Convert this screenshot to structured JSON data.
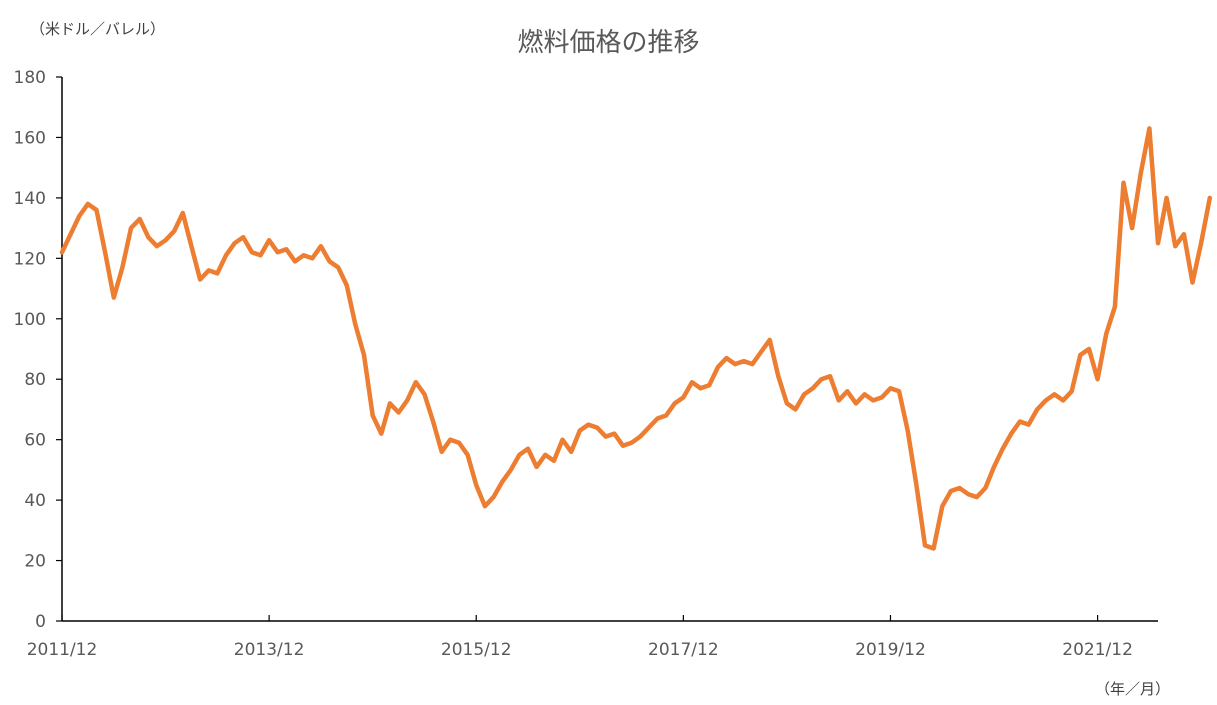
{
  "chart_data": {
    "type": "line",
    "title": "燃料価格の推移",
    "ylabel": "（米ドル／バレル）",
    "xlabel": "（年／月）",
    "ylim": [
      0,
      180
    ],
    "y_ticks": [
      "0",
      "20",
      "40",
      "60",
      "80",
      "100",
      "120",
      "140",
      "160",
      "180"
    ],
    "x_ticks": [
      "2011/12",
      "2013/12",
      "2015/12",
      "2017/12",
      "2019/12",
      "2021/12"
    ],
    "xlim": [
      "2011/12",
      "2022/07"
    ],
    "grid": false,
    "line_color": "#ED7D31",
    "series": [
      {
        "points": [
          [
            "2011/12",
            122
          ],
          [
            "2012/01",
            128
          ],
          [
            "2012/02",
            134
          ],
          [
            "2012/03",
            138
          ],
          [
            "2012/04",
            136
          ],
          [
            "2012/05",
            122
          ],
          [
            "2012/06",
            107
          ],
          [
            "2012/07",
            117
          ],
          [
            "2012/08",
            130
          ],
          [
            "2012/09",
            133
          ],
          [
            "2012/10",
            127
          ],
          [
            "2012/11",
            124
          ],
          [
            "2012/12",
            126
          ],
          [
            "2013/01",
            129
          ],
          [
            "2013/02",
            135
          ],
          [
            "2013/03",
            124
          ],
          [
            "2013/04",
            113
          ],
          [
            "2013/05",
            116
          ],
          [
            "2013/06",
            115
          ],
          [
            "2013/07",
            121
          ],
          [
            "2013/08",
            125
          ],
          [
            "2013/09",
            127
          ],
          [
            "2013/10",
            122
          ],
          [
            "2013/11",
            121
          ],
          [
            "2013/12",
            126
          ],
          [
            "2014/01",
            122
          ],
          [
            "2014/02",
            123
          ],
          [
            "2014/03",
            119
          ],
          [
            "2014/04",
            121
          ],
          [
            "2014/05",
            120
          ],
          [
            "2014/06",
            124
          ],
          [
            "2014/07",
            119
          ],
          [
            "2014/08",
            117
          ],
          [
            "2014/09",
            111
          ],
          [
            "2014/10",
            98
          ],
          [
            "2014/11",
            88
          ],
          [
            "2014/12",
            68
          ],
          [
            "2015/01",
            62
          ],
          [
            "2015/02",
            72
          ],
          [
            "2015/03",
            69
          ],
          [
            "2015/04",
            73
          ],
          [
            "2015/05",
            79
          ],
          [
            "2015/06",
            75
          ],
          [
            "2015/07",
            66
          ],
          [
            "2015/08",
            56
          ],
          [
            "2015/09",
            60
          ],
          [
            "2015/10",
            59
          ],
          [
            "2015/11",
            55
          ],
          [
            "2015/12",
            45
          ],
          [
            "2016/01",
            38
          ],
          [
            "2016/02",
            41
          ],
          [
            "2016/03",
            46
          ],
          [
            "2016/04",
            50
          ],
          [
            "2016/05",
            55
          ],
          [
            "2016/06",
            57
          ],
          [
            "2016/07",
            51
          ],
          [
            "2016/08",
            55
          ],
          [
            "2016/09",
            53
          ],
          [
            "2016/10",
            60
          ],
          [
            "2016/11",
            56
          ],
          [
            "2016/12",
            63
          ],
          [
            "2017/01",
            65
          ],
          [
            "2017/02",
            64
          ],
          [
            "2017/03",
            61
          ],
          [
            "2017/04",
            62
          ],
          [
            "2017/05",
            58
          ],
          [
            "2017/06",
            59
          ],
          [
            "2017/07",
            61
          ],
          [
            "2017/08",
            64
          ],
          [
            "2017/09",
            67
          ],
          [
            "2017/10",
            68
          ],
          [
            "2017/11",
            72
          ],
          [
            "2017/12",
            74
          ],
          [
            "2018/01",
            79
          ],
          [
            "2018/02",
            77
          ],
          [
            "2018/03",
            78
          ],
          [
            "2018/04",
            84
          ],
          [
            "2018/05",
            87
          ],
          [
            "2018/06",
            85
          ],
          [
            "2018/07",
            86
          ],
          [
            "2018/08",
            85
          ],
          [
            "2018/09",
            89
          ],
          [
            "2018/10",
            93
          ],
          [
            "2018/11",
            81
          ],
          [
            "2018/12",
            72
          ],
          [
            "2019/01",
            70
          ],
          [
            "2019/02",
            75
          ],
          [
            "2019/03",
            77
          ],
          [
            "2019/04",
            80
          ],
          [
            "2019/05",
            81
          ],
          [
            "2019/06",
            73
          ],
          [
            "2019/07",
            76
          ],
          [
            "2019/08",
            72
          ],
          [
            "2019/09",
            75
          ],
          [
            "2019/10",
            73
          ],
          [
            "2019/11",
            74
          ],
          [
            "2019/12",
            77
          ],
          [
            "2020/01",
            76
          ],
          [
            "2020/02",
            63
          ],
          [
            "2020/03",
            45
          ],
          [
            "2020/04",
            25
          ],
          [
            "2020/05",
            24
          ],
          [
            "2020/06",
            38
          ],
          [
            "2020/07",
            43
          ],
          [
            "2020/08",
            44
          ],
          [
            "2020/09",
            42
          ],
          [
            "2020/10",
            41
          ],
          [
            "2020/11",
            44
          ],
          [
            "2020/12",
            51
          ],
          [
            "2021/01",
            57
          ],
          [
            "2021/02",
            62
          ],
          [
            "2021/03",
            66
          ],
          [
            "2021/04",
            65
          ],
          [
            "2021/05",
            70
          ],
          [
            "2021/06",
            73
          ],
          [
            "2021/07",
            75
          ],
          [
            "2021/08",
            73
          ],
          [
            "2021/09",
            76
          ],
          [
            "2021/10",
            88
          ],
          [
            "2021/11",
            90
          ],
          [
            "2021/12",
            80
          ],
          [
            "2022/01",
            95
          ],
          [
            "2022/02",
            104
          ],
          [
            "2022/03",
            145
          ],
          [
            "2022/04",
            130
          ],
          [
            "2022/05",
            148
          ],
          [
            "2022/06",
            163
          ],
          [
            "2022/07",
            125
          ],
          [
            "2022/08",
            140
          ],
          [
            "2022/09",
            124
          ],
          [
            "2022/10",
            128
          ],
          [
            "2022/11",
            112
          ],
          [
            "2022/12",
            125
          ],
          [
            "2023/01",
            140
          ]
        ]
      }
    ]
  }
}
